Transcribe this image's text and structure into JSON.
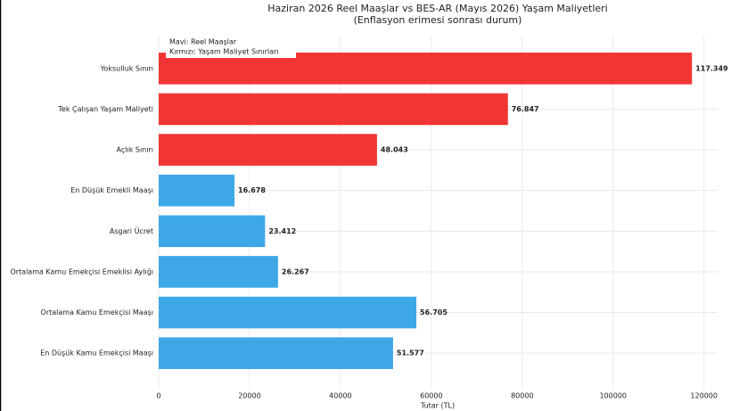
{
  "chart_data": {
    "type": "hbar",
    "title": "Haziran 2026 Reel Maaşlar vs BES-AR (Mayıs 2026) Yaşam Maliyetleri",
    "subtitle": "(Enflasyon erimesi sonrası durum)",
    "x_label": "Tutar (TL)",
    "annotations": [
      "Mavi: Reel Maaşlar",
      "Kırmızı: Yaşam Maliyet Sınırları"
    ],
    "categories": [
      "Yoksulluk Sınırı",
      "Tek Çalışan Yaşam Maliyeti",
      "Açlık Sınırı",
      "En Düşük Emekli Maaşı",
      "Asgari Ücret",
      "Ortalama Kamu Emekçisi Emeklisi Aylığı",
      "Ortalama Kamu Emekçisi Maaşı",
      "En Düşük Kamu Emekçisi Maaşı"
    ],
    "values": [
      117349,
      76847,
      48043,
      16678,
      23412,
      26267,
      56705,
      51577
    ],
    "value_labels": [
      "117.349",
      "76.847",
      "48.043",
      "16.678",
      "23.412",
      "26.267",
      "56.705",
      "51.577"
    ],
    "colors": [
      "#f02a2a",
      "#f02a2a",
      "#f02a2a",
      "#34a3e6",
      "#34a3e6",
      "#34a3e6",
      "#34a3e6",
      "#34a3e6"
    ],
    "xlim": [
      0,
      123000
    ],
    "xticks": [
      0,
      20000,
      40000,
      60000,
      80000,
      100000,
      120000
    ],
    "grid": true
  }
}
